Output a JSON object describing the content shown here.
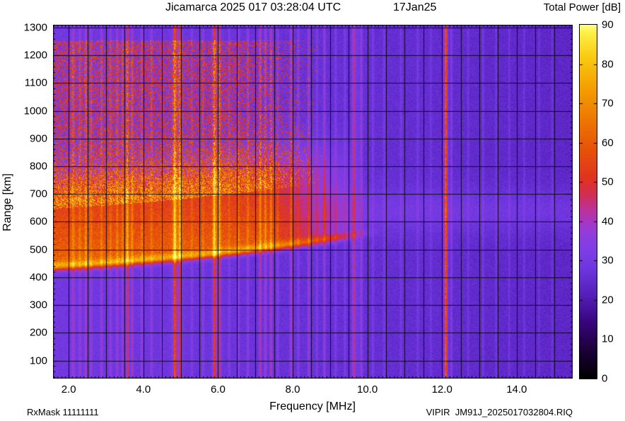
{
  "footer": {
    "rx_mask": "RxMask 11111111",
    "file": "VIPIR  JM91J_2025017032804.RIQ"
  },
  "chart_data": {
    "type": "heatmap",
    "title": "Jicamarca 2025 017 03:28:04 UTC",
    "date_label": "17Jan25",
    "colorbar_label": "Total Power [dB]",
    "xlabel": "Frequency [MHz]",
    "ylabel": "Range [km]",
    "xlim": [
      1.58,
      15.5
    ],
    "ylim": [
      35,
      1310
    ],
    "zlim": [
      0,
      90
    ],
    "xticks": [
      2,
      4,
      6,
      8,
      10,
      12,
      14
    ],
    "xtick_labels": [
      "2.0",
      "4.0",
      "6.0",
      "8.0",
      "10.0",
      "12.0",
      "14.0"
    ],
    "yticks": [
      100,
      200,
      300,
      400,
      500,
      600,
      700,
      800,
      900,
      1000,
      1100,
      1200,
      1300
    ],
    "zticks": [
      0,
      10,
      20,
      30,
      40,
      50,
      60,
      70,
      80,
      90
    ],
    "grid_step_mhz": 0.5,
    "grid_step_km": 100,
    "colormap_stops": [
      [
        0,
        0,
        0,
        0
      ],
      [
        7,
        28,
        0,
        55
      ],
      [
        14,
        55,
        5,
        120
      ],
      [
        21,
        85,
        30,
        185
      ],
      [
        28,
        110,
        55,
        222
      ],
      [
        33,
        128,
        62,
        230
      ],
      [
        38,
        152,
        60,
        215
      ],
      [
        43,
        188,
        50,
        155
      ],
      [
        47,
        212,
        45,
        80
      ],
      [
        51,
        224,
        52,
        32
      ],
      [
        58,
        231,
        82,
        10
      ],
      [
        66,
        238,
        120,
        0
      ],
      [
        74,
        244,
        160,
        0
      ],
      [
        82,
        250,
        205,
        20
      ],
      [
        88,
        255,
        240,
        70
      ],
      [
        90,
        255,
        255,
        130
      ]
    ],
    "background": {
      "base_db": 29.5,
      "slope_db_per_mhz": -0.42,
      "noise_db": 2.6
    },
    "echo_band": {
      "bottom_km_at_2mhz": 445,
      "bottom_slope_km_per_mhz": 8,
      "bottom_curve_km_per_mhz2": 0.8,
      "edge_sigma_km": 18,
      "thickness_km": 205,
      "top_sigma_km": 130,
      "amp_db": 33,
      "fade_start_mhz": 7.3,
      "fade_end_mhz": 9.9
    },
    "edge_trace": {
      "amp_db": 14,
      "sigma_km": 14,
      "fade_start_mhz": 9.2,
      "fade_end_mhz": 10.4
    },
    "spread_region": {
      "top_km": 1255,
      "density": 0.5,
      "fade_start_mhz": 6.5,
      "fade_end_mhz": 8.8,
      "dot_db_min": 13,
      "dot_db_max": 30
    },
    "right_band": {
      "center_km": 640,
      "sigma_km": 75,
      "amp_db": 5,
      "start_mhz": 8.8
    },
    "rfi_lines": [
      [
        2.12,
        10,
        0.04
      ],
      [
        2.3,
        8,
        0.035
      ],
      [
        2.46,
        12,
        0.03
      ],
      [
        2.6,
        8,
        0.03
      ],
      [
        2.88,
        9,
        0.03
      ],
      [
        3.12,
        8,
        0.03
      ],
      [
        3.3,
        10,
        0.03
      ],
      [
        3.44,
        9,
        0.025
      ],
      [
        3.57,
        20,
        0.035
      ],
      [
        3.7,
        12,
        0.03
      ],
      [
        3.96,
        8,
        0.03
      ],
      [
        4.22,
        8,
        0.03
      ],
      [
        4.5,
        7,
        0.03
      ],
      [
        4.84,
        24,
        0.04
      ],
      [
        4.98,
        16,
        0.035
      ],
      [
        4.9,
        6,
        0.15
      ],
      [
        5.3,
        6,
        0.03
      ],
      [
        5.6,
        7,
        0.03
      ],
      [
        5.9,
        22,
        0.04
      ],
      [
        6.04,
        14,
        0.03
      ],
      [
        5.97,
        5,
        0.12
      ],
      [
        6.3,
        6,
        0.03
      ],
      [
        6.55,
        8,
        0.03
      ],
      [
        6.8,
        9,
        0.03
      ],
      [
        7.13,
        16,
        0.03
      ],
      [
        7.27,
        13,
        0.03
      ],
      [
        7.42,
        15,
        0.03
      ],
      [
        7.6,
        7,
        0.03
      ],
      [
        7.96,
        13,
        0.035
      ],
      [
        8.15,
        7,
        0.03
      ],
      [
        8.43,
        11,
        0.03
      ],
      [
        8.65,
        6,
        0.03
      ],
      [
        8.85,
        11,
        0.03
      ],
      [
        9.15,
        6,
        0.03
      ],
      [
        9.4,
        6,
        0.03
      ],
      [
        9.63,
        15,
        0.035
      ],
      [
        9.84,
        11,
        0.03
      ],
      [
        9.7,
        4,
        0.12
      ],
      [
        10.15,
        6,
        0.03
      ],
      [
        10.45,
        5,
        0.03
      ],
      [
        10.9,
        5,
        0.03
      ],
      [
        11.35,
        5,
        0.03
      ],
      [
        11.7,
        4,
        0.03
      ],
      [
        12.1,
        34,
        0.045
      ],
      [
        12.25,
        8,
        0.03
      ],
      [
        12.7,
        5,
        0.025
      ],
      [
        13.1,
        6,
        0.025
      ],
      [
        13.45,
        5,
        0.025
      ],
      [
        13.8,
        5,
        0.025
      ],
      [
        14.2,
        5,
        0.025
      ],
      [
        14.6,
        4,
        0.025
      ],
      [
        14.95,
        4,
        0.025
      ]
    ]
  }
}
